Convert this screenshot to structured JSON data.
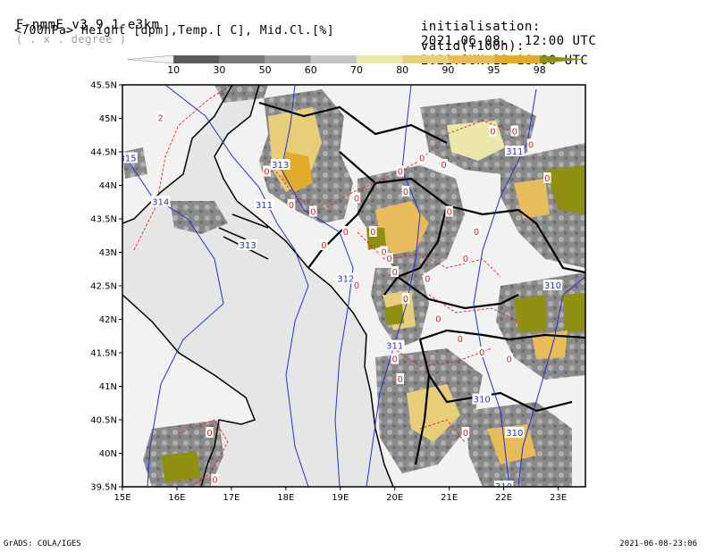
{
  "header": {
    "model": "F-nmmE_v3.9.1-e3km",
    "projection": "( . x . degree )",
    "fields": "<700hPa> Height [dpm],Temp.[ C], Mid.Cl.[%]",
    "init_label": "initialisation:",
    "init_value": "2021.06.08.  12:00 UTC",
    "valid_label": "valid(+100h):",
    "valid_value": "2021.JUN.12 16:00 UTC"
  },
  "colorbar": {
    "levels": [
      "10",
      "30",
      "50",
      "60",
      "70",
      "80",
      "90",
      "95",
      "98"
    ],
    "colors": [
      "#f2f2f2",
      "#5a5a5a",
      "#787878",
      "#9a9a9a",
      "#c4c4c4",
      "#ece7aa",
      "#e9ce7a",
      "#e8bc5a",
      "#e2ab2c",
      "#8f8f10"
    ]
  },
  "map": {
    "lon_ticks": [
      "15E",
      "16E",
      "17E",
      "18E",
      "19E",
      "20E",
      "21E",
      "22E",
      "23E"
    ],
    "lat_ticks": [
      "45.5N",
      "45N",
      "44.5N",
      "44N",
      "43.5N",
      "43N",
      "42.5N",
      "42N",
      "41.5N",
      "41N",
      "40.5N",
      "40N",
      "39.5N"
    ],
    "lon_range": [
      15,
      23.5
    ],
    "lat_range": [
      39.5,
      45.5
    ],
    "sea_color": "#e6e6e6",
    "height_contour_color": "#2233cc",
    "temp_contour_color": "#dd2222",
    "height_labels": [
      {
        "text": "313",
        "lon": 17.9,
        "lat": 44.3
      },
      {
        "text": "313",
        "lon": 17.3,
        "lat": 43.1
      },
      {
        "text": "314",
        "lon": 15.7,
        "lat": 43.75
      },
      {
        "text": "315",
        "lon": 15.1,
        "lat": 44.4
      },
      {
        "text": "311",
        "lon": 17.6,
        "lat": 43.7
      },
      {
        "text": "312",
        "lon": 19.1,
        "lat": 42.6
      },
      {
        "text": "311",
        "lon": 20.0,
        "lat": 41.6
      },
      {
        "text": "310",
        "lon": 21.6,
        "lat": 40.8
      },
      {
        "text": "310",
        "lon": 22.2,
        "lat": 40.3
      },
      {
        "text": "310",
        "lon": 22.9,
        "lat": 42.5
      },
      {
        "text": "311",
        "lon": 22.2,
        "lat": 44.5
      },
      {
        "text": "310",
        "lon": 22.0,
        "lat": 39.5
      }
    ],
    "temp_labels": [
      {
        "text": "2",
        "lon": 15.7,
        "lat": 45.0
      },
      {
        "text": "0",
        "lon": 17.65,
        "lat": 44.2
      },
      {
        "text": "0",
        "lon": 18.5,
        "lat": 43.6
      },
      {
        "text": "0",
        "lon": 18.1,
        "lat": 43.7
      },
      {
        "text": "0",
        "lon": 18.7,
        "lat": 43.1
      },
      {
        "text": "0",
        "lon": 19.1,
        "lat": 43.3
      },
      {
        "text": "0",
        "lon": 19.3,
        "lat": 43.8
      },
      {
        "text": "0",
        "lon": 19.6,
        "lat": 43.3
      },
      {
        "text": "0",
        "lon": 19.8,
        "lat": 43.0
      },
      {
        "text": "0",
        "lon": 20.1,
        "lat": 44.2
      },
      {
        "text": "0",
        "lon": 20.2,
        "lat": 43.9
      },
      {
        "text": "0",
        "lon": 20.5,
        "lat": 44.4
      },
      {
        "text": "0",
        "lon": 20.9,
        "lat": 44.3
      },
      {
        "text": "0",
        "lon": 21.0,
        "lat": 43.6
      },
      {
        "text": "0",
        "lon": 21.5,
        "lat": 43.3
      },
      {
        "text": "0",
        "lon": 21.8,
        "lat": 44.8
      },
      {
        "text": "0",
        "lon": 22.2,
        "lat": 44.8
      },
      {
        "text": "0",
        "lon": 22.5,
        "lat": 44.6
      },
      {
        "text": "0",
        "lon": 22.8,
        "lat": 44.1
      },
      {
        "text": "0",
        "lon": 20.0,
        "lat": 42.7
      },
      {
        "text": "0",
        "lon": 19.9,
        "lat": 42.9
      },
      {
        "text": "0",
        "lon": 20.2,
        "lat": 42.3
      },
      {
        "text": "0",
        "lon": 20.6,
        "lat": 42.6
      },
      {
        "text": "0",
        "lon": 21.3,
        "lat": 42.9
      },
      {
        "text": "0",
        "lon": 19.3,
        "lat": 42.5
      },
      {
        "text": "0",
        "lon": 20.8,
        "lat": 42.0
      },
      {
        "text": "0",
        "lon": 21.2,
        "lat": 41.7
      },
      {
        "text": "0",
        "lon": 21.6,
        "lat": 41.5
      },
      {
        "text": "0",
        "lon": 22.1,
        "lat": 41.4
      },
      {
        "text": "0",
        "lon": 20.0,
        "lat": 41.4
      },
      {
        "text": "0",
        "lon": 20.1,
        "lat": 41.1
      },
      {
        "text": "0",
        "lon": 21.3,
        "lat": 40.3
      },
      {
        "text": "0",
        "lon": 16.6,
        "lat": 40.3
      },
      {
        "text": "0",
        "lon": 16.7,
        "lat": 39.6
      }
    ]
  },
  "footer": {
    "left": "GrADS: COLA/IGES",
    "right": "2021-06-08-23:06"
  }
}
